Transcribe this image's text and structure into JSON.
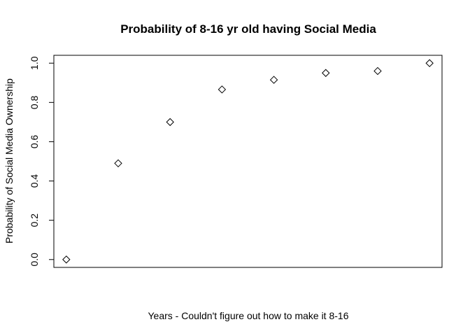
{
  "chart_data": {
    "type": "scatter",
    "title": "Probability of 8-16 yr old having Social Media",
    "xlabel": "Years -  Couldn't figure out how to make it 8-16",
    "ylabel": "Probability of Social Media Ownership",
    "x": [
      1,
      2,
      3,
      4,
      5,
      6,
      7,
      8
    ],
    "y": [
      0.0,
      0.49,
      0.7,
      0.866,
      0.915,
      0.95,
      0.96,
      1.0
    ],
    "xlim": [
      0.76,
      8.24
    ],
    "ylim": [
      -0.04,
      1.04
    ],
    "y_ticks": [
      0.0,
      0.2,
      0.4,
      0.6,
      0.8,
      1.0
    ],
    "y_tick_labels": [
      "0.0",
      "0.2",
      "0.4",
      "0.6",
      "0.8",
      "1.0"
    ],
    "marker": "diamond",
    "x_axis_shown": false,
    "grid": false,
    "legend": "none"
  }
}
